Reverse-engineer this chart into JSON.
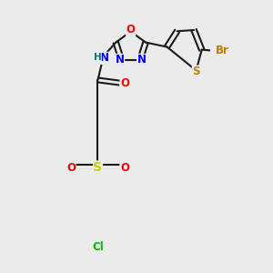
{
  "bg_color": "#ebebeb",
  "bond_color": "#1a1a1a",
  "atom_colors": {
    "N": "#0000ee",
    "O": "#ff0000",
    "S_thio": "#b8860b",
    "S_sulfone": "#cccc00",
    "Br": "#cc7700",
    "Cl": "#00bb00",
    "H": "#007777"
  },
  "lw": 1.5,
  "dbo": 0.18,
  "fs": 8.5
}
